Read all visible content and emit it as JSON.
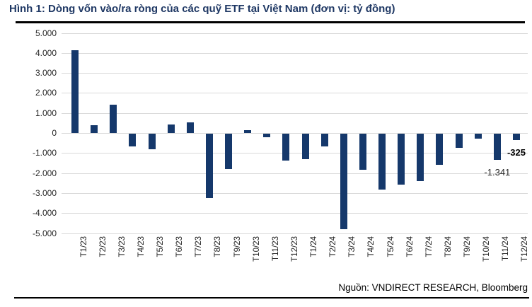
{
  "header": {
    "title": "Hình 1: Dòng vốn vào/ra ròng của các quỹ ETF tại Việt Nam (đơn vị: tỷ đồng)"
  },
  "chart_data": {
    "type": "bar",
    "title": "Dòng vốn vào/ra ròng của các quỹ ETF tại Việt Nam",
    "unit": "tỷ đồng",
    "categories": [
      "T1/23",
      "T2/23",
      "T3/23",
      "T4/23",
      "T5/23",
      "T6/23",
      "T7/23",
      "T8/23",
      "T9/23",
      "T10/23",
      "T11/23",
      "T12/23",
      "T1/24",
      "T2/24",
      "T3/24",
      "T4/24",
      "T5/24",
      "T6/24",
      "T7/24",
      "T8/24",
      "T9/24",
      "T10/24",
      "T11/24",
      "T12/24"
    ],
    "values": [
      4150,
      420,
      1430,
      -660,
      -810,
      450,
      560,
      -3230,
      -1800,
      150,
      -200,
      -1350,
      -1290,
      -660,
      -4800,
      -1810,
      -2820,
      -2550,
      -2380,
      -1560,
      -740,
      -260,
      -1341,
      -325
    ],
    "ylim": [
      -5000,
      5000
    ],
    "ytick_step": 1000,
    "ytick_labels": [
      "5.000",
      "4.000",
      "3.000",
      "2.000",
      "1.000",
      "0",
      "-1.000",
      "-2.000",
      "-3.000",
      "-4.000",
      "-5.000"
    ],
    "grid": true,
    "legend": "none",
    "bar_color": "#15386b",
    "grid_color": "#d9d9d9",
    "annotations": [
      {
        "category": "T11/24",
        "text": "-1.341",
        "bold": false
      },
      {
        "category": "T12/24",
        "text": "-325",
        "bold": true
      }
    ]
  },
  "footer": {
    "source": "Nguồn: VNDIRECT RESEARCH, Bloomberg"
  }
}
